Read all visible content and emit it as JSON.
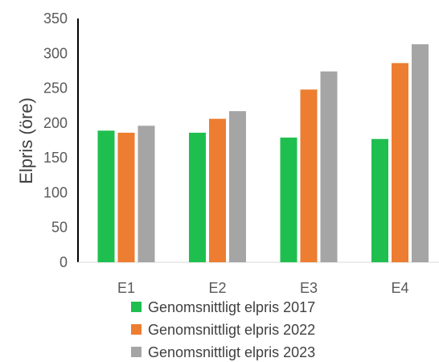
{
  "chart_data": {
    "type": "bar",
    "title": "",
    "xlabel": "",
    "ylabel": "Elpris (öre)",
    "ylim": [
      0,
      350
    ],
    "yticks": [
      0,
      50,
      100,
      150,
      200,
      250,
      300,
      350
    ],
    "grid": false,
    "legend_position": "bottom",
    "categories": [
      "E1",
      "E2",
      "E3",
      "E4"
    ],
    "series": [
      {
        "name": "Genomsnittligt elpris 2017",
        "color": "#1fbf4f",
        "values": [
          189,
          186,
          179,
          177
        ]
      },
      {
        "name": "Genomsnittligt elpris 2022",
        "color": "#ed7d31",
        "values": [
          186,
          206,
          248,
          286
        ]
      },
      {
        "name": "Genomsnittligt elpris 2023",
        "color": "#a5a5a5",
        "values": [
          196,
          217,
          274,
          313
        ]
      }
    ]
  }
}
